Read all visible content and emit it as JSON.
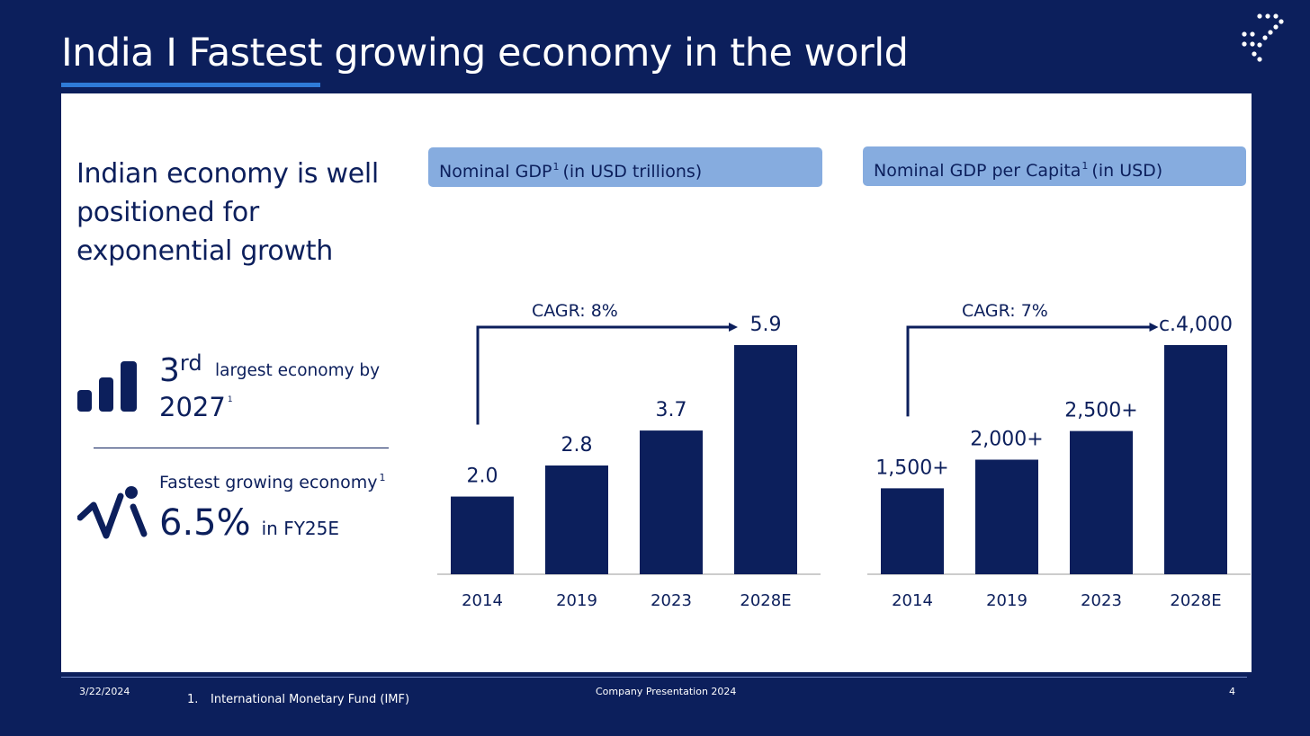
{
  "colors": {
    "background": "#0c1f5c",
    "panel": "#ffffff",
    "bar": "#0c1f5c",
    "header_fill": "#86acdf",
    "accent_underline": "#2f7bd8"
  },
  "header": {
    "title": "India I Fastest growing economy in the world",
    "logo_icon": "dotted-arrow-logo-icon"
  },
  "left_panel": {
    "headline": "Indian economy is well positioned for exponential growth",
    "stat1": {
      "icon": "bar-chart-icon",
      "value": "3",
      "value_sup": "rd",
      "text": "largest economy by",
      "year": "2027",
      "footnote_ref": "1"
    },
    "stat2": {
      "icon": "growth-person-icon",
      "text": "Fastest growing economy",
      "footnote_ref": "1",
      "value": "6.5%",
      "suffix": "in FY25E"
    }
  },
  "charts": {
    "gdp_header": {
      "text": "Nominal GDP",
      "sup": "1",
      "suffix": "(in USD trillions)"
    },
    "capita_header": {
      "text": "Nominal GDP per Capita",
      "sup": "1",
      "suffix": "(in USD)"
    }
  },
  "chart_data": [
    {
      "type": "bar",
      "title": "Nominal GDP (in USD trillions)",
      "categories": [
        "2014",
        "2019",
        "2023",
        "2028E"
      ],
      "values": [
        2.0,
        2.8,
        3.7,
        5.9
      ],
      "data_labels": [
        "2.0",
        "2.8",
        "3.7",
        "5.9"
      ],
      "ylim": [
        0,
        5.9
      ],
      "annotation": "CAGR: 8%",
      "grid": false
    },
    {
      "type": "bar",
      "title": "Nominal GDP per Capita (in USD)",
      "categories": [
        "2014",
        "2019",
        "2023",
        "2028E"
      ],
      "values": [
        1500,
        2000,
        2500,
        4000
      ],
      "data_labels": [
        "1,500+",
        "2,000+",
        "2,500+",
        "c.4,000"
      ],
      "ylim": [
        0,
        4000
      ],
      "annotation": "CAGR: 7%",
      "grid": false
    }
  ],
  "footer": {
    "date": "3/22/2024",
    "note_number": "1.",
    "note": "International Monetary Fund (IMF)",
    "center": "Company Presentation 2024",
    "page": "4"
  }
}
